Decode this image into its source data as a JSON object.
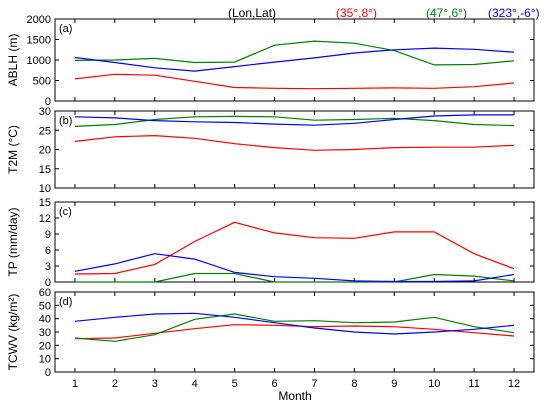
{
  "chart_data": {
    "type": "line",
    "x": [
      1,
      2,
      3,
      4,
      5,
      6,
      7,
      8,
      9,
      10,
      11,
      12
    ],
    "xlabel": "Month",
    "legend": {
      "placement": "top-right",
      "header": "(Lon,Lat)",
      "entries": [
        {
          "label": "(35°,8°)",
          "color": "#ff0000"
        },
        {
          "label": "(47°,6°)",
          "color": "#008000"
        },
        {
          "label": "(323°,-6°)",
          "color": "#0000ff"
        }
      ]
    },
    "panels": [
      {
        "label": "(a)",
        "ylabel": "ABLH (m)",
        "ylim": [
          0,
          2000
        ],
        "yticks": [
          0,
          500,
          1000,
          1500,
          2000
        ],
        "series": [
          {
            "color": "#ff0000",
            "values": [
              540,
              650,
              630,
              480,
              330,
              310,
              300,
              310,
              320,
              310,
              350,
              440
            ]
          },
          {
            "color": "#008000",
            "values": [
              990,
              1000,
              1040,
              940,
              950,
              1360,
              1460,
              1410,
              1230,
              880,
              890,
              980
            ]
          },
          {
            "color": "#0000ff",
            "values": [
              1060,
              940,
              810,
              730,
              840,
              950,
              1050,
              1170,
              1250,
              1290,
              1260,
              1190
            ]
          }
        ]
      },
      {
        "label": "(b)",
        "ylabel": "T2M (°C)",
        "ylim": [
          10,
          30
        ],
        "yticks": [
          10,
          15,
          20,
          25,
          30
        ],
        "series": [
          {
            "color": "#ff0000",
            "values": [
              22.1,
              23.3,
              23.6,
              22.9,
              21.5,
              20.5,
              19.8,
              20.0,
              20.5,
              20.6,
              20.6,
              21.1
            ]
          },
          {
            "color": "#008000",
            "values": [
              26.0,
              26.5,
              27.8,
              28.5,
              28.6,
              28.5,
              27.6,
              27.8,
              28.1,
              27.5,
              26.5,
              26.2
            ]
          },
          {
            "color": "#0000ff",
            "values": [
              28.5,
              28.2,
              27.5,
              27.2,
              27.0,
              26.6,
              26.3,
              26.8,
              27.8,
              28.7,
              29.0,
              29.0
            ]
          }
        ]
      },
      {
        "label": "(c)",
        "ylabel": "TP (mm/day)",
        "ylim": [
          0,
          15
        ],
        "yticks": [
          0,
          3,
          6,
          9,
          12,
          15
        ],
        "series": [
          {
            "color": "#ff0000",
            "values": [
              1.5,
              1.6,
              3.3,
              7.6,
              11.2,
              9.2,
              8.3,
              8.2,
              9.4,
              9.4,
              5.3,
              2.5
            ]
          },
          {
            "color": "#008000",
            "values": [
              0.0,
              0.0,
              0.0,
              1.6,
              1.6,
              0.0,
              0.0,
              0.0,
              0.0,
              1.4,
              1.1,
              0.2
            ]
          },
          {
            "color": "#0000ff",
            "values": [
              2.0,
              3.4,
              5.3,
              4.3,
              1.8,
              1.0,
              0.7,
              0.2,
              0.1,
              0.1,
              0.2,
              1.4
            ]
          }
        ]
      },
      {
        "label": "(d)",
        "ylabel": "TCWV (kg/m²)",
        "ylim": [
          0,
          60
        ],
        "yticks": [
          0,
          10,
          20,
          30,
          40,
          50,
          60
        ],
        "series": [
          {
            "color": "#ff0000",
            "values": [
              25,
              25.5,
              29,
              32.5,
              35.5,
              35,
              34,
              34.5,
              34,
              32,
              29.5,
              27
            ]
          },
          {
            "color": "#008000",
            "values": [
              25.5,
              23,
              28,
              39.5,
              43.5,
              38,
              38.5,
              37,
              37.5,
              41,
              34,
              29.5
            ]
          },
          {
            "color": "#0000ff",
            "values": [
              38,
              41,
              43.5,
              44,
              41,
              37,
              33,
              30,
              28.5,
              30,
              32,
              35
            ]
          }
        ]
      }
    ]
  }
}
